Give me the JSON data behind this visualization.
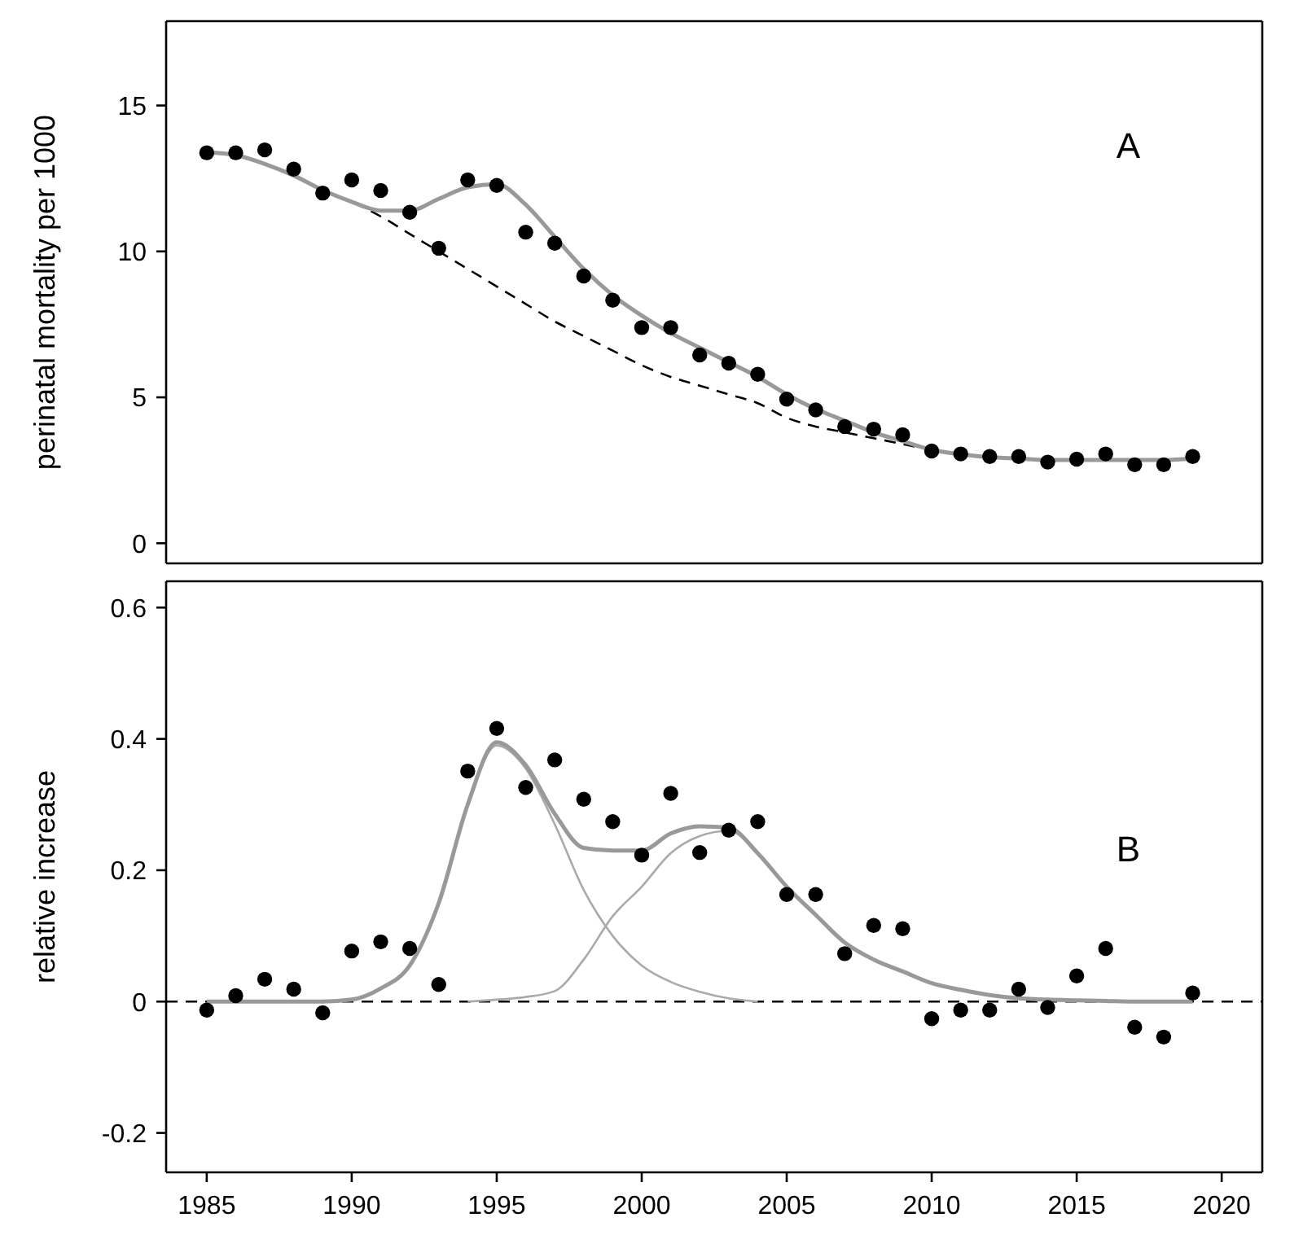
{
  "chart_data": [
    {
      "type": "scatter",
      "ylabel": "perinatal mortality per 1000",
      "annotations": [
        "A"
      ],
      "tick_labels": "y",
      "x": [
        1985,
        1986,
        1987,
        1988,
        1989,
        1990,
        1991,
        1992,
        1993,
        1994,
        1995,
        1996,
        1997,
        1998,
        1999,
        2000,
        2001,
        2002,
        2003,
        2004,
        2005,
        2006,
        2007,
        2008,
        2009,
        2010,
        2011,
        2012,
        2013,
        2014,
        2015,
        2016,
        2017,
        2018,
        2019
      ],
      "xlim": [
        1983.6,
        2021.4
      ],
      "ylim": [
        -0.69,
        17.89
      ],
      "yticks": [
        0,
        5,
        10,
        15
      ],
      "series": [
        {
          "type": "line",
          "color": "#000000",
          "line_style": "dashed",
          "marker": "none",
          "values": [
            13.4,
            13.3,
            13.0,
            12.6,
            12.1,
            11.7,
            11.2,
            10.6,
            10.0,
            9.4,
            8.8,
            8.2,
            7.6,
            7.1,
            6.6,
            6.1,
            5.7,
            5.4,
            5.1,
            4.8,
            4.3,
            4.0,
            3.8,
            3.6,
            3.4,
            3.2,
            3.05,
            2.95,
            2.9,
            2.85,
            2.85,
            2.85,
            2.85,
            2.85,
            2.9
          ]
        },
        {
          "type": "line",
          "color": "#999999",
          "line_style": "solid",
          "marker": "none",
          "values": [
            13.4,
            13.3,
            13.0,
            12.6,
            12.1,
            11.7,
            11.4,
            11.4,
            11.8,
            12.2,
            12.3,
            11.6,
            10.5,
            9.4,
            8.5,
            7.8,
            7.2,
            6.7,
            6.2,
            5.7,
            5.1,
            4.6,
            4.2,
            3.8,
            3.5,
            3.2,
            3.05,
            2.95,
            2.9,
            2.85,
            2.85,
            2.85,
            2.85,
            2.85,
            2.9
          ]
        },
        {
          "type": "scatter",
          "color": "#000000",
          "marker": "circle",
          "values": [
            13.38,
            13.38,
            13.48,
            12.82,
            12.0,
            12.45,
            12.09,
            11.34,
            10.11,
            12.45,
            12.26,
            10.66,
            10.28,
            9.16,
            8.33,
            7.39,
            7.39,
            6.45,
            6.17,
            5.79,
            4.94,
            4.57,
            4.0,
            3.91,
            3.72,
            3.16,
            3.06,
            2.97,
            2.97,
            2.78,
            2.88,
            3.06,
            2.69,
            2.69,
            2.97
          ]
        }
      ]
    },
    {
      "type": "scatter",
      "ylabel": "relative increase",
      "annotations": [
        "B"
      ],
      "x": [
        1985,
        1986,
        1987,
        1988,
        1989,
        1990,
        1991,
        1992,
        1993,
        1994,
        1995,
        1996,
        1997,
        1998,
        1999,
        2000,
        2001,
        2002,
        2003,
        2004,
        2005,
        2006,
        2007,
        2008,
        2009,
        2010,
        2011,
        2012,
        2013,
        2014,
        2015,
        2016,
        2017,
        2018,
        2019
      ],
      "xlim": [
        1983.6,
        2021.4
      ],
      "xticks": [
        1985,
        1990,
        1995,
        2000,
        2005,
        2010,
        2015,
        2020
      ],
      "ylim": [
        -0.26,
        0.64
      ],
      "yticks": [
        -0.2,
        0.0,
        0.2,
        0.4,
        0.6
      ],
      "ref_lines": [
        {
          "axis": "y",
          "value": 0,
          "color": "#000000",
          "line_style": "dashed"
        }
      ],
      "series": [
        {
          "type": "line",
          "color": "#aaaaaa",
          "line_style": "solid",
          "marker": "none",
          "values": [
            null,
            null,
            null,
            null,
            0,
            0.003,
            0.02,
            0.055,
            0.15,
            0.3,
            0.39,
            0.355,
            0.27,
            0.17,
            0.1,
            0.055,
            0.03,
            0.015,
            0.005,
            0,
            null,
            null,
            null,
            null,
            null,
            null,
            null,
            null,
            null,
            null,
            null,
            null,
            null,
            null,
            null
          ]
        },
        {
          "type": "line",
          "color": "#aaaaaa",
          "line_style": "solid",
          "marker": "none",
          "values": [
            null,
            null,
            null,
            null,
            null,
            null,
            null,
            null,
            null,
            0,
            0.003,
            0.007,
            0.016,
            0.064,
            0.13,
            0.175,
            0.226,
            0.252,
            0.26,
            0.226,
            0.175,
            0.132,
            0.09,
            0.064,
            0.046,
            0.028,
            0.018,
            0.01,
            0.005,
            null,
            null,
            null,
            null,
            null,
            null
          ]
        },
        {
          "type": "line",
          "color": "#999999",
          "line_style": "solid",
          "marker": "none",
          "values": [
            0,
            0,
            0,
            0,
            0,
            0.003,
            0.02,
            0.055,
            0.15,
            0.3,
            0.395,
            0.36,
            0.286,
            0.234,
            0.23,
            0.23,
            0.256,
            0.267,
            0.265,
            0.226,
            0.175,
            0.132,
            0.09,
            0.064,
            0.046,
            0.028,
            0.018,
            0.01,
            0.005,
            0.003,
            0.002,
            0.001,
            0,
            0,
            0
          ]
        },
        {
          "type": "scatter",
          "color": "#000000",
          "marker": "circle",
          "values": [
            -0.013,
            0.009,
            0.034,
            0.019,
            -0.017,
            0.077,
            0.091,
            0.081,
            0.026,
            0.351,
            0.416,
            0.326,
            0.368,
            0.308,
            0.274,
            0.223,
            0.317,
            0.227,
            0.261,
            0.274,
            0.163,
            0.163,
            0.073,
            0.116,
            0.111,
            -0.026,
            -0.013,
            -0.013,
            0.019,
            -0.009,
            0.039,
            0.081,
            -0.039,
            -0.054,
            0.013
          ]
        }
      ]
    }
  ]
}
